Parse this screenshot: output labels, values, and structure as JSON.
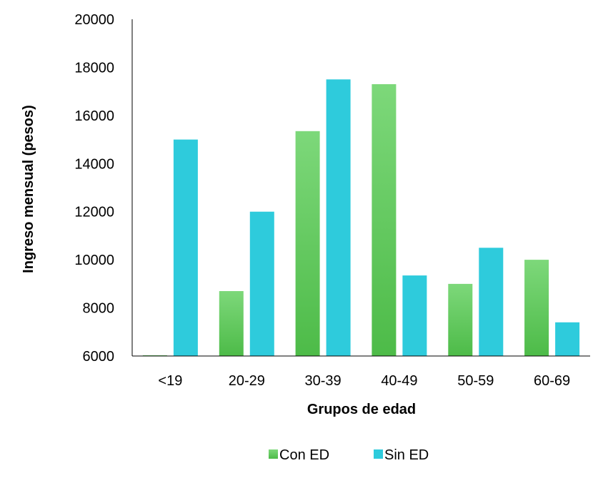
{
  "chart_data": {
    "type": "bar",
    "title": "",
    "xlabel": "Grupos de edad",
    "ylabel": "Ingreso mensual  (pesos)",
    "categories": [
      "<19",
      "20-29",
      "30-39",
      "40-49",
      "50-59",
      "60-69"
    ],
    "series": [
      {
        "name": "Con ED",
        "values": [
          6000,
          8700,
          15350,
          17300,
          9000,
          10000
        ],
        "color_top": "#7dd87a",
        "color_bottom": "#4dbb48"
      },
      {
        "name": "Sin ED",
        "values": [
          15000,
          12000,
          17500,
          9350,
          10500,
          7400
        ],
        "color": "#2ecbdc"
      }
    ],
    "ylim": [
      6000,
      20000
    ],
    "yticks": [
      "6000",
      "8000",
      "10000",
      "12000",
      "14000",
      "16000",
      "18000",
      "20000"
    ],
    "grid": false,
    "legend": "bottom-center"
  }
}
